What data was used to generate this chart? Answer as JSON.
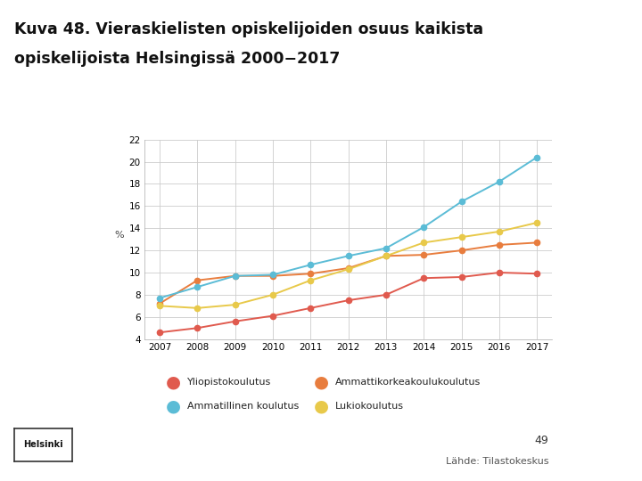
{
  "title_line1": "Kuva 48. Vieraskielisten opiskelijoiden osuus kaikista",
  "title_line2": "opiskelijoista Helsingissä 2000−2017",
  "ylabel": "%",
  "years": [
    2007,
    2008,
    2009,
    2010,
    2011,
    2012,
    2013,
    2014,
    2015,
    2016,
    2017
  ],
  "series": [
    {
      "name": "Yliopistokoulutus",
      "values": [
        4.6,
        5.0,
        5.6,
        6.1,
        6.8,
        7.5,
        8.0,
        9.5,
        9.6,
        10.0,
        9.9
      ],
      "color": "#e05a4e"
    },
    {
      "name": "Ammattikorkeakoulukoulutus",
      "values": [
        7.2,
        9.3,
        9.7,
        9.7,
        9.9,
        10.4,
        11.5,
        11.6,
        12.0,
        12.5,
        12.7
      ],
      "color": "#e87d3e"
    },
    {
      "name": "Ammatillinen koulutus",
      "values": [
        7.7,
        8.7,
        9.7,
        9.8,
        10.7,
        11.5,
        12.2,
        14.1,
        16.4,
        18.2,
        20.4
      ],
      "color": "#5bbcd6"
    },
    {
      "name": "Lukiokoulutus",
      "values": [
        7.0,
        6.8,
        7.1,
        8.0,
        9.3,
        10.3,
        11.5,
        12.7,
        13.2,
        13.7,
        14.5
      ],
      "color": "#e8c94a"
    }
  ],
  "ylim": [
    4,
    22
  ],
  "yticks": [
    4,
    6,
    8,
    10,
    12,
    14,
    16,
    18,
    20,
    22
  ],
  "bg_color": "#ffffff",
  "plot_bg": "#ffffff",
  "right_panel_color": "#b8d4e8",
  "grid_color": "#cccccc",
  "source_text": "Lähde: Tilastokeskus",
  "page_number": "49",
  "legend_row1": [
    "Yliopistokoulutus",
    "Ammattikorkeakoulukoulutus"
  ],
  "legend_row2": [
    "Ammatillinen koulutus",
    "Lukiokoulutus"
  ]
}
